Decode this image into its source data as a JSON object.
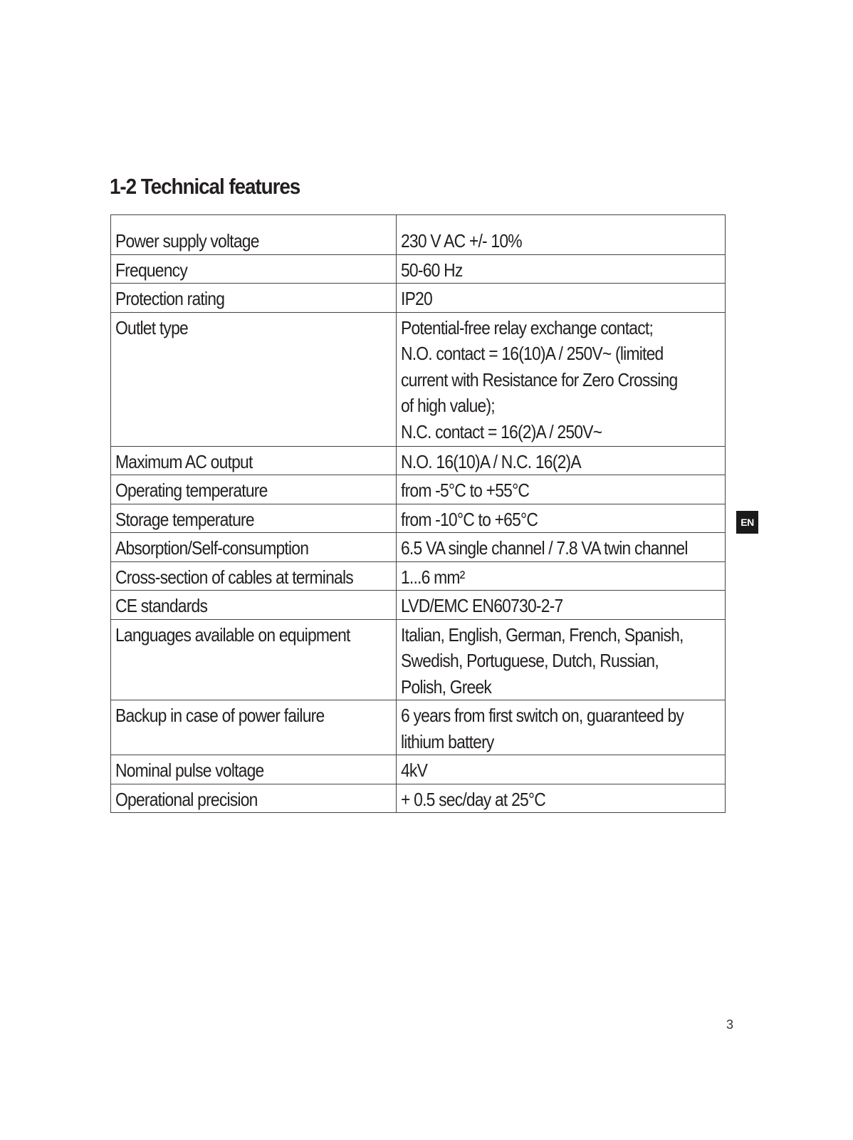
{
  "title": "1-2 Technical features",
  "rows": [
    {
      "label": "Power supply voltage",
      "value": [
        "230 V AC +/- 10%"
      ]
    },
    {
      "label": "Frequency",
      "value": [
        "50-60 Hz"
      ]
    },
    {
      "label": "Protection rating",
      "value": [
        "IP20"
      ]
    },
    {
      "label": "Outlet type",
      "value": [
        "Potential-free relay exchange contact;",
        "N.O. contact = 16(10)A / 250V~ (limited",
        "current with Resistance for Zero Crossing",
        "of high value);",
        "N.C. contact = 16(2)A / 250V~"
      ]
    },
    {
      "label": "Maximum AC output",
      "value": [
        "N.O. 16(10)A / N.C. 16(2)A"
      ]
    },
    {
      "label": "Operating temperature",
      "value": [
        "from -5°C to +55°C"
      ]
    },
    {
      "label": "Storage temperature",
      "value": [
        "from -10°C to +65°C"
      ]
    },
    {
      "label": "Absorption/Self-consumption",
      "value": [
        "6.5 VA single channel / 7.8 VA twin channel"
      ]
    },
    {
      "label": "Cross-section of cables at terminals",
      "value": [
        "1...6 mm²"
      ]
    },
    {
      "label": "CE standards",
      "value": [
        "LVD/EMC EN60730-2-7"
      ]
    },
    {
      "label": "Languages available on equipment",
      "value": [
        "Italian, English, German, French, Spanish,",
        "Swedish, Portuguese, Dutch, Russian,",
        "Polish, Greek"
      ]
    },
    {
      "label": "Backup in case of power failure",
      "value": [
        "6 years from first switch on, guaranteed by",
        "lithium battery"
      ]
    },
    {
      "label": "Nominal pulse voltage",
      "value": [
        "4kV"
      ]
    },
    {
      "label": "Operational precision",
      "value": [
        "+ 0.5 sec/day at 25°C"
      ]
    }
  ],
  "language_badge": "EN",
  "page_number": "3"
}
